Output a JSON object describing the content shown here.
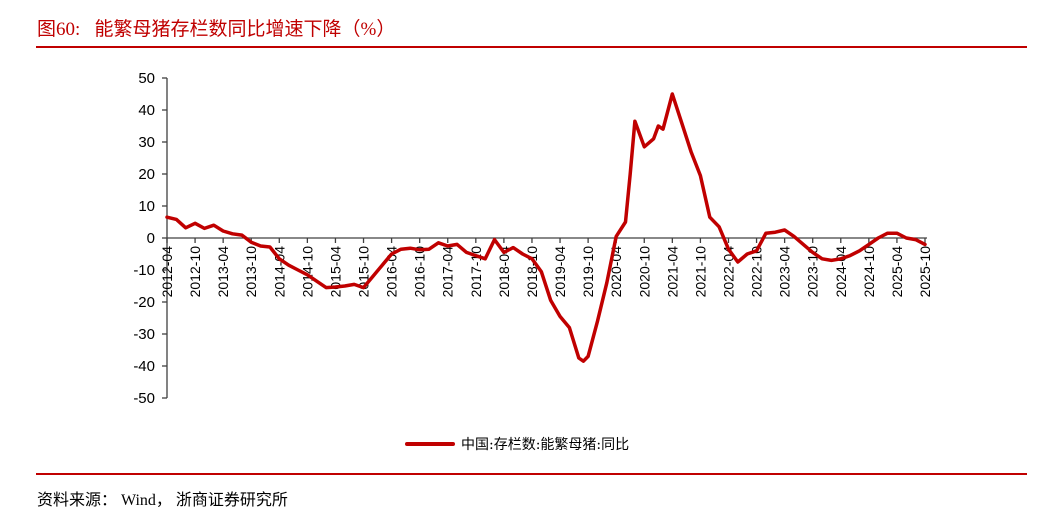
{
  "header": {
    "title": "图60:   能繁母猪存栏数同比增速下降（%）"
  },
  "footer": {
    "source": "资料来源： Wind， 浙商证券研究所"
  },
  "legend": {
    "label": "中国:存栏数:能繁母猪:同比",
    "color": "#c00000"
  },
  "colors": {
    "accent": "#c00000",
    "axis": "#404040"
  },
  "chart_data": {
    "type": "line",
    "title": "能繁母猪存栏数同比增速下降（%）",
    "xlabel": "",
    "ylabel": "",
    "ylim": [
      -50,
      50
    ],
    "yticks": [
      50,
      40,
      30,
      20,
      10,
      0,
      -10,
      -20,
      -30,
      -40,
      -50
    ],
    "grid": false,
    "legend_position": "bottom",
    "xticks": [
      "2012-04",
      "2012-10",
      "2013-04",
      "2013-10",
      "2014-04",
      "2014-10",
      "2015-04",
      "2015-10",
      "2016-04",
      "2016-10",
      "2017-04",
      "2017-10",
      "2018-04",
      "2018-10",
      "2019-04",
      "2019-10",
      "2020-04",
      "2020-10",
      "2021-04",
      "2021-10",
      "2022-04",
      "2022-10",
      "2023-04",
      "2023-10",
      "2024-04",
      "2024-10",
      "2025-04",
      "2025-10"
    ],
    "series": [
      {
        "name": "中国:存栏数:能繁母猪:同比",
        "color": "#c00000",
        "x": [
          "2012-04",
          "2012-06",
          "2012-08",
          "2012-10",
          "2012-12",
          "2013-02",
          "2013-04",
          "2013-06",
          "2013-08",
          "2013-10",
          "2013-12",
          "2014-02",
          "2014-04",
          "2014-06",
          "2014-08",
          "2014-10",
          "2014-12",
          "2015-02",
          "2015-04",
          "2015-06",
          "2015-08",
          "2015-10",
          "2015-12",
          "2016-02",
          "2016-04",
          "2016-06",
          "2016-08",
          "2016-10",
          "2016-12",
          "2017-02",
          "2017-04",
          "2017-06",
          "2017-08",
          "2017-10",
          "2017-12",
          "2018-02",
          "2018-04",
          "2018-06",
          "2018-08",
          "2018-10",
          "2018-12",
          "2019-02",
          "2019-04",
          "2019-06",
          "2019-08",
          "2019-09",
          "2019-10",
          "2019-12",
          "2020-02",
          "2020-04",
          "2020-06",
          "2020-07",
          "2020-08",
          "2020-10",
          "2020-12",
          "2021-01",
          "2021-02",
          "2021-04",
          "2021-06",
          "2021-08",
          "2021-10",
          "2021-12",
          "2022-02",
          "2022-04",
          "2022-06",
          "2022-08",
          "2022-10",
          "2022-12",
          "2023-02",
          "2023-04",
          "2023-06",
          "2023-08",
          "2023-10",
          "2023-12",
          "2024-02",
          "2024-04",
          "2024-06",
          "2024-08",
          "2024-10",
          "2024-12",
          "2025-02",
          "2025-04",
          "2025-06",
          "2025-08",
          "2025-10"
        ],
        "values": [
          6.5,
          5.8,
          3.2,
          4.6,
          3.0,
          4.0,
          2.2,
          1.3,
          0.9,
          -1.3,
          -2.5,
          -2.8,
          -6.5,
          -8.5,
          -10.0,
          -11.5,
          -13.5,
          -15.5,
          -15.3,
          -15.0,
          -14.5,
          -15.5,
          -12.0,
          -8.5,
          -5.0,
          -3.5,
          -3.2,
          -3.7,
          -3.5,
          -1.5,
          -2.5,
          -2.0,
          -4.5,
          -5.5,
          -6.5,
          -0.5,
          -4.5,
          -3.0,
          -5.0,
          -6.5,
          -10.5,
          -19.5,
          -24.5,
          -28.0,
          -37.5,
          -38.5,
          -37.0,
          -26.0,
          -14.0,
          0.5,
          5.0,
          20.0,
          36.5,
          28.5,
          31.0,
          35.0,
          34.0,
          45.0,
          36.0,
          27.0,
          19.5,
          6.5,
          3.5,
          -3.5,
          -7.5,
          -5.0,
          -4.0,
          1.5,
          1.8,
          2.5,
          0.5,
          -2.0,
          -4.5,
          -6.5,
          -7.0,
          -6.5,
          -5.5,
          -4.0,
          -2.0,
          0.0,
          1.5,
          1.5,
          0.0,
          -0.5,
          -2.0
        ]
      }
    ]
  }
}
